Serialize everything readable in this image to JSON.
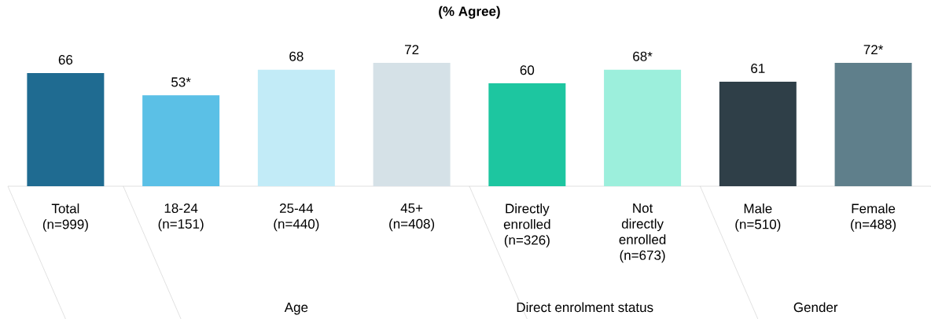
{
  "chart_data": {
    "type": "bar",
    "title": "(% Agree)",
    "categories": [
      "Total (n=999)",
      "18-24 (n=151)",
      "25-44 (n=440)",
      "45+ (n=408)",
      "Directly enrolled (n=326)",
      "Not directly enrolled (n=673)",
      "Male (n=510)",
      "Female (n=488)"
    ],
    "values": [
      66,
      53,
      68,
      72,
      60,
      68,
      61,
      72
    ],
    "colors": [
      "#1f6b91",
      "#5bc0e6",
      "#c2ebf7",
      "#d5e1e7",
      "#1dc6a0",
      "#9cefdc",
      "#2f3f48",
      "#5f7f8b"
    ],
    "value_labels": [
      "66",
      "53*",
      "68",
      "72",
      "60",
      "68*",
      "61",
      "72*"
    ],
    "annotations": [
      "Age",
      "Direct enrolment status",
      "Gender"
    ]
  }
}
